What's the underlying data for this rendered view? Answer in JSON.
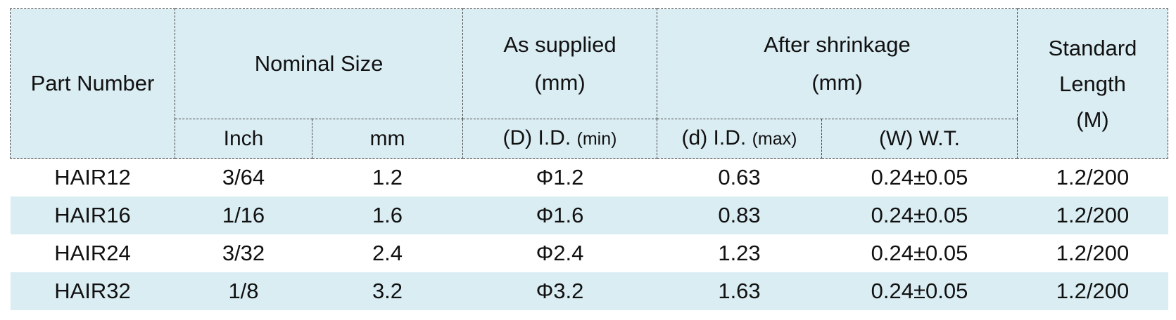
{
  "header": {
    "part_number": "Part Number",
    "nominal_size": "Nominal Size",
    "inch": "Inch",
    "mm": "mm",
    "as_supplied": [
      "As supplied",
      "(mm)"
    ],
    "as_supplied_id": {
      "text": "(D) I.D.",
      "qualifier": "(min)"
    },
    "after_shrinkage": [
      "After shrinkage",
      "(mm)"
    ],
    "after_shrinkage_id": {
      "text": "(d) I.D.",
      "qualifier": "(max)"
    },
    "wall_thickness": "(W) W.T.",
    "standard_length": [
      "Standard",
      "Length",
      "(M)"
    ]
  },
  "table": {
    "rows": [
      [
        "HAIR12",
        "3/64",
        "1.2",
        "Φ1.2",
        "0.63",
        "0.24±0.05",
        "1.2/200"
      ],
      [
        "HAIR16",
        "1/16",
        "1.6",
        "Φ1.6",
        "0.83",
        "0.24±0.05",
        "1.2/200"
      ],
      [
        "HAIR24",
        "3/32",
        "2.4",
        "Φ2.4",
        "1.23",
        "0.24±0.05",
        "1.2/200"
      ],
      [
        "HAIR32",
        "1/8",
        "3.2",
        "Φ3.2",
        "1.63",
        "0.24±0.05",
        "1.2/200"
      ]
    ]
  }
}
